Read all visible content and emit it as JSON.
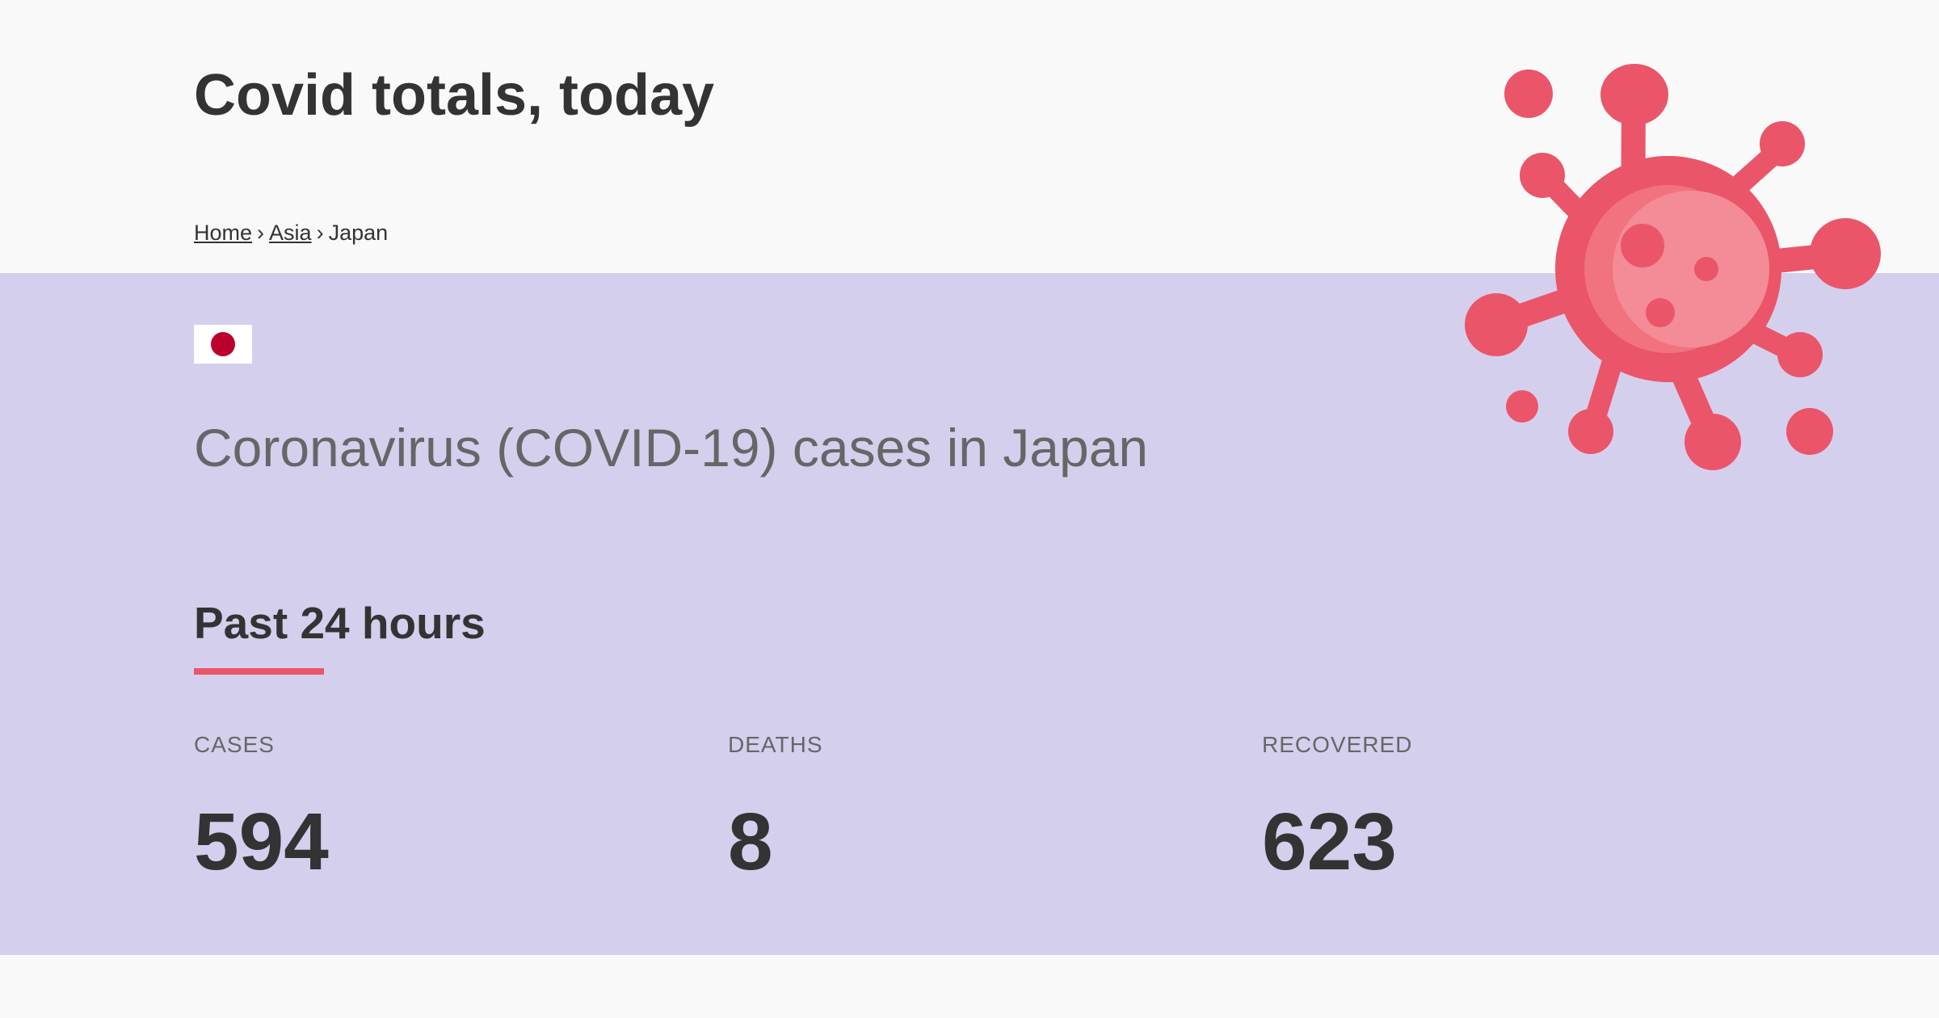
{
  "header": {
    "title": "Covid totals, today"
  },
  "breadcrumb": {
    "items": [
      {
        "label": "Home",
        "link": true
      },
      {
        "label": "Asia",
        "link": true
      },
      {
        "label": "Japan",
        "link": false
      }
    ],
    "separator": "›"
  },
  "illustration": {
    "icon": "virus-icon",
    "color": "#eb5569"
  },
  "country": {
    "flag_icon": "japan-flag-icon",
    "heading": "Coronavirus (COVID-19) cases in Japan"
  },
  "period": {
    "heading": "Past 24 hours",
    "accent_color": "#eb5569"
  },
  "stats": [
    {
      "label": "CASES",
      "value": "594"
    },
    {
      "label": "DEATHS",
      "value": "8"
    },
    {
      "label": "RECOVERED",
      "value": "623"
    }
  ],
  "colors": {
    "band_background": "#d5cfee",
    "page_background": "#f9f9f9",
    "text_primary": "#333333",
    "text_secondary": "#666666"
  }
}
